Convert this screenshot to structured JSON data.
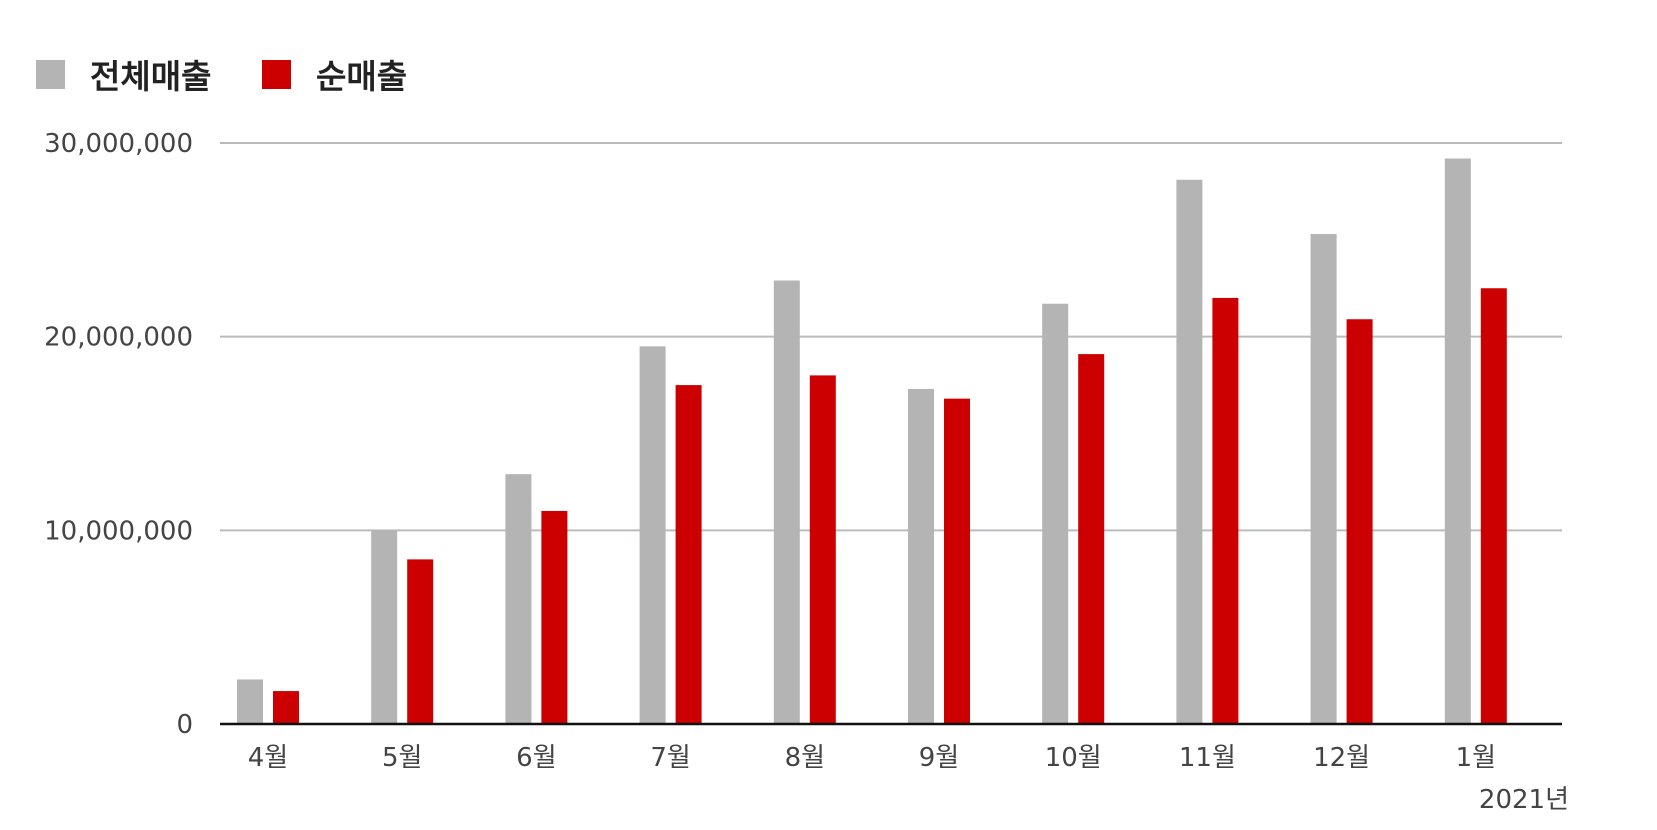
{
  "chart_data": {
    "type": "bar",
    "categories": [
      "4월",
      "5월",
      "6월",
      "7월",
      "8월",
      "9월",
      "10월",
      "11월",
      "12월",
      "1월"
    ],
    "series": [
      {
        "name": "전체매출",
        "color": "#b4b4b4",
        "values": [
          2300000,
          10000000,
          12900000,
          19500000,
          22900000,
          17300000,
          21700000,
          28100000,
          25300000,
          29200000
        ]
      },
      {
        "name": "순매출",
        "color": "#cc0000",
        "values": [
          1700000,
          8500000,
          11000000,
          17500000,
          18000000,
          16800000,
          19100000,
          22000000,
          20900000,
          22500000
        ]
      }
    ],
    "ylim": [
      0,
      30000000
    ],
    "yticks": [
      0,
      10000000,
      20000000,
      30000000
    ],
    "ytick_labels": [
      "0",
      "10,000,000",
      "20,000,000",
      "30,000,000"
    ],
    "annotation": "2021년",
    "grid": true,
    "legend_placement": "top-left"
  }
}
